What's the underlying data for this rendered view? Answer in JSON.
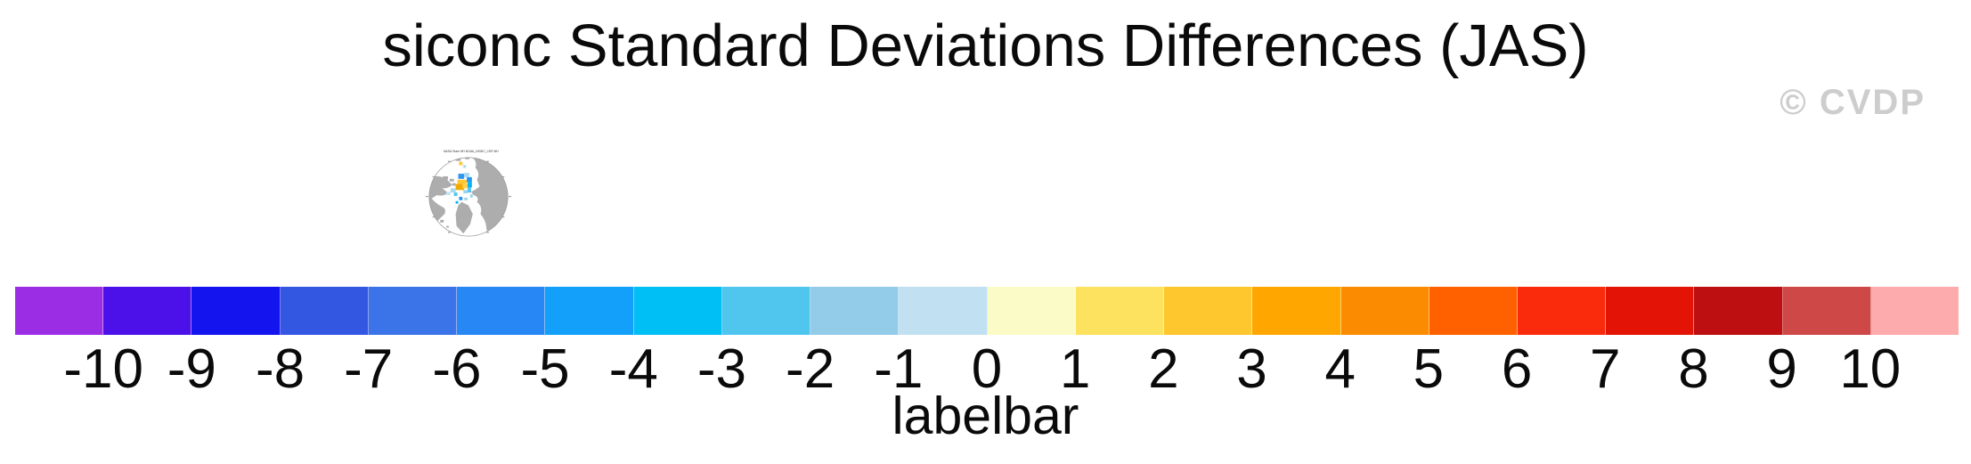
{
  "watermark": "© CVDP",
  "chart_data": {
    "type": "heatmap",
    "title": "siconc Standard Deviations Differences (JAS)",
    "variable": "siconc",
    "season": "JAS",
    "legend_position": "bottom",
    "panels": [
      {
        "title": "NASA Team NH NOAA_NSIDC_CDR NH",
        "projection": "polar-stereographic",
        "description": "Arctic thumbnail map: gray land, white ocean, blue negative and gold positive std-dev difference patches near the pole"
      }
    ],
    "colorbar": {
      "caption": "labelbar",
      "tick_labels": [
        "-10",
        "-9",
        "-8",
        "-7",
        "-6",
        "-5",
        "-4",
        "-3",
        "-2",
        "-1",
        "0",
        "1",
        "2",
        "3",
        "4",
        "5",
        "6",
        "7",
        "8",
        "9",
        "10"
      ],
      "n_boxes": 22,
      "colors": [
        "#9b2ee4",
        "#4b11e8",
        "#1414ef",
        "#3457e2",
        "#3b73e8",
        "#2687f5",
        "#12a0fb",
        "#00bff5",
        "#50c5ee",
        "#93cce8",
        "#c1e1f3",
        "#fbfbc8",
        "#fce25f",
        "#fdc72d",
        "#ffa600",
        "#fb8b00",
        "#ff6000",
        "#fa2a0d",
        "#e31405",
        "#bd0e12",
        "#ce4848",
        "#fdabad"
      ]
    },
    "map_colors": {
      "land": "#adadad",
      "ocean": "#ffffff",
      "outline": "#999999"
    }
  }
}
